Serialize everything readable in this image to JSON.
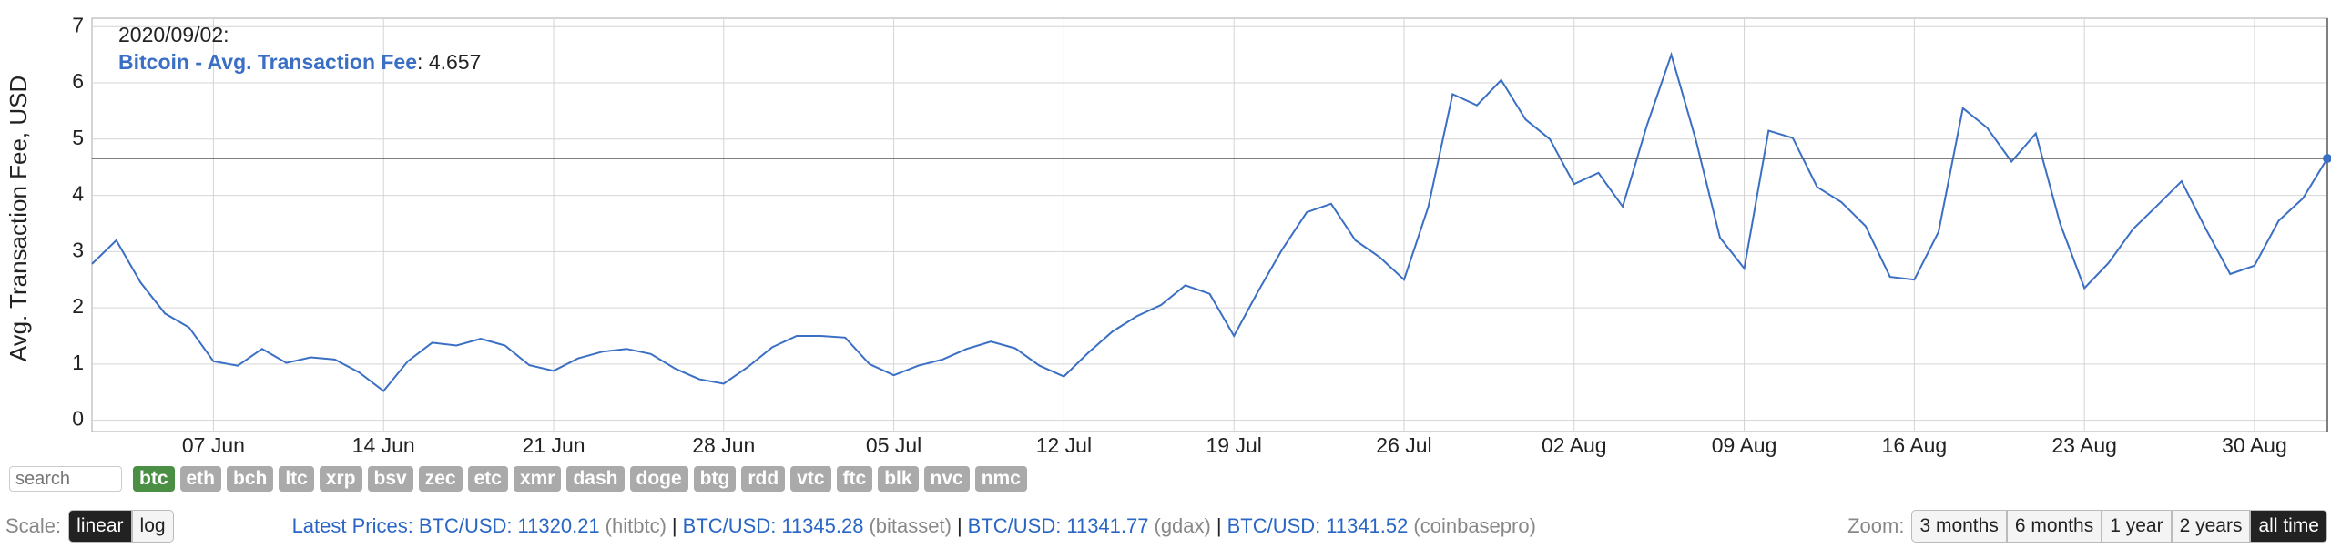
{
  "chart_data": {
    "type": "line",
    "y_label": "Avg. Transaction Fee, USD",
    "hover_date": "2020/09/02:",
    "hover_separator": ": ",
    "x": [
      "2020-06-02",
      "2020-06-03",
      "2020-06-04",
      "2020-06-05",
      "2020-06-06",
      "2020-06-07",
      "2020-06-08",
      "2020-06-09",
      "2020-06-10",
      "2020-06-11",
      "2020-06-12",
      "2020-06-13",
      "2020-06-14",
      "2020-06-15",
      "2020-06-16",
      "2020-06-17",
      "2020-06-18",
      "2020-06-19",
      "2020-06-20",
      "2020-06-21",
      "2020-06-22",
      "2020-06-23",
      "2020-06-24",
      "2020-06-25",
      "2020-06-26",
      "2020-06-27",
      "2020-06-28",
      "2020-06-29",
      "2020-06-30",
      "2020-07-01",
      "2020-07-02",
      "2020-07-03",
      "2020-07-04",
      "2020-07-05",
      "2020-07-06",
      "2020-07-07",
      "2020-07-08",
      "2020-07-09",
      "2020-07-10",
      "2020-07-11",
      "2020-07-12",
      "2020-07-13",
      "2020-07-14",
      "2020-07-15",
      "2020-07-16",
      "2020-07-17",
      "2020-07-18",
      "2020-07-19",
      "2020-07-20",
      "2020-07-21",
      "2020-07-22",
      "2020-07-23",
      "2020-07-24",
      "2020-07-25",
      "2020-07-26",
      "2020-07-27",
      "2020-07-28",
      "2020-07-29",
      "2020-07-30",
      "2020-07-31",
      "2020-08-01",
      "2020-08-02",
      "2020-08-03",
      "2020-08-04",
      "2020-08-05",
      "2020-08-06",
      "2020-08-07",
      "2020-08-08",
      "2020-08-09",
      "2020-08-10",
      "2020-08-11",
      "2020-08-12",
      "2020-08-13",
      "2020-08-14",
      "2020-08-15",
      "2020-08-16",
      "2020-08-17",
      "2020-08-18",
      "2020-08-19",
      "2020-08-20",
      "2020-08-21",
      "2020-08-22",
      "2020-08-23",
      "2020-08-24",
      "2020-08-25",
      "2020-08-26",
      "2020-08-27",
      "2020-08-28",
      "2020-08-29",
      "2020-08-30",
      "2020-08-31",
      "2020-09-01",
      "2020-09-02"
    ],
    "series": [
      {
        "name": "Bitcoin - Avg. Transaction Fee",
        "color": "#3a6fc4",
        "values": [
          2.78,
          3.2,
          2.45,
          1.9,
          1.65,
          1.05,
          0.97,
          1.27,
          1.02,
          1.12,
          1.08,
          0.85,
          0.52,
          1.05,
          1.38,
          1.33,
          1.45,
          1.33,
          0.98,
          0.88,
          1.1,
          1.22,
          1.27,
          1.18,
          0.92,
          0.73,
          0.65,
          0.95,
          1.3,
          1.5,
          1.5,
          1.47,
          1.0,
          0.8,
          0.97,
          1.08,
          1.27,
          1.4,
          1.28,
          0.97,
          0.78,
          1.2,
          1.58,
          1.85,
          2.05,
          2.4,
          2.25,
          1.5,
          2.3,
          3.05,
          3.7,
          3.85,
          3.2,
          2.9,
          2.5,
          3.8,
          5.8,
          5.6,
          6.05,
          5.35,
          5.0,
          4.2,
          4.4,
          3.8,
          5.25,
          6.5,
          5.0,
          3.25,
          2.7,
          5.15,
          5.02,
          4.15,
          3.88,
          3.45,
          2.55,
          2.5,
          3.35,
          5.55,
          5.2,
          4.6,
          5.1,
          3.5,
          2.35,
          2.8,
          3.4,
          3.82,
          4.25,
          3.4,
          2.6,
          2.75,
          3.55,
          3.95,
          4.657
        ]
      }
    ],
    "xlim": [
      "2020-06-02",
      "2020-09-02"
    ],
    "xticks": [
      {
        "value": "2020-06-07",
        "label": "07 Jun"
      },
      {
        "value": "2020-06-14",
        "label": "14 Jun"
      },
      {
        "value": "2020-06-21",
        "label": "21 Jun"
      },
      {
        "value": "2020-06-28",
        "label": "28 Jun"
      },
      {
        "value": "2020-07-05",
        "label": "05 Jul"
      },
      {
        "value": "2020-07-12",
        "label": "12 Jul"
      },
      {
        "value": "2020-07-19",
        "label": "19 Jul"
      },
      {
        "value": "2020-07-26",
        "label": "26 Jul"
      },
      {
        "value": "2020-08-02",
        "label": "02 Aug"
      },
      {
        "value": "2020-08-09",
        "label": "09 Aug"
      },
      {
        "value": "2020-08-16",
        "label": "16 Aug"
      },
      {
        "value": "2020-08-23",
        "label": "23 Aug"
      },
      {
        "value": "2020-08-30",
        "label": "30 Aug"
      }
    ],
    "ylim": [
      -0.2,
      7.15
    ],
    "yticks": [
      0,
      1,
      2,
      3,
      4,
      5,
      6,
      7
    ],
    "grid": true
  },
  "controls": {
    "search_placeholder": "search",
    "coins": [
      "btc",
      "eth",
      "bch",
      "ltc",
      "xrp",
      "bsv",
      "zec",
      "etc",
      "xmr",
      "dash",
      "doge",
      "btg",
      "rdd",
      "vtc",
      "ftc",
      "blk",
      "nvc",
      "nmc"
    ],
    "active_coin": "btc",
    "scale_label": "Scale:",
    "scale_options": [
      "linear",
      "log"
    ],
    "active_scale": "linear",
    "latest_label": "Latest Prices:",
    "price_separator": "|",
    "prices": [
      {
        "pair": "BTC/USD:",
        "price": "11320.21",
        "source": "(hitbtc)"
      },
      {
        "pair": "BTC/USD:",
        "price": "11345.28",
        "source": "(bitasset)"
      },
      {
        "pair": "BTC/USD:",
        "price": "11341.77",
        "source": "(gdax)"
      },
      {
        "pair": "BTC/USD:",
        "price": "11341.52",
        "source": "(coinbasepro)"
      }
    ],
    "zoom_label": "Zoom:",
    "zoom_options": [
      "3 months",
      "6 months",
      "1 year",
      "2 years",
      "all time"
    ],
    "active_zoom": "all time"
  }
}
